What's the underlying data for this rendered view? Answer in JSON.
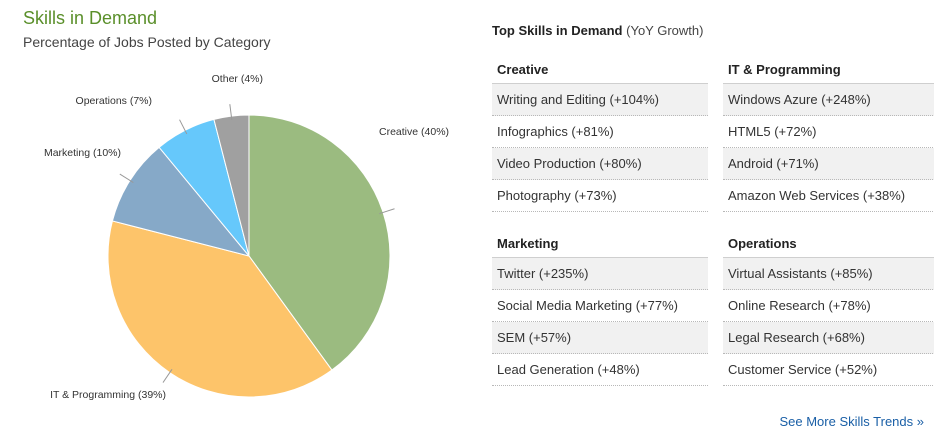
{
  "header": {
    "title": "Skills in Demand",
    "subtitle": "Percentage of Jobs Posted by Category"
  },
  "chart_data": {
    "type": "pie",
    "slices": [
      {
        "label": "Creative (40%)",
        "value": 40,
        "color": "#9bbb80"
      },
      {
        "label": "IT & Programming (39%)",
        "value": 39,
        "color": "#fdc46a"
      },
      {
        "label": "Marketing (10%)",
        "value": 10,
        "color": "#86a9c8"
      },
      {
        "label": "Operations (7%)",
        "value": 7,
        "color": "#66c8fb"
      },
      {
        "label": "Other (4%)",
        "value": 4,
        "color": "#a0a0a0"
      }
    ]
  },
  "skills": {
    "title": "Top Skills in Demand",
    "title_sub": "(YoY Growth)",
    "groups": [
      {
        "name": "Creative",
        "items": [
          "Writing and Editing (+104%)",
          "Infographics (+81%)",
          "Video Production (+80%)",
          "Photography (+73%)"
        ]
      },
      {
        "name": "IT & Programming",
        "items": [
          "Windows Azure (+248%)",
          "HTML5 (+72%)",
          "Android (+71%)",
          "Amazon Web Services (+38%)"
        ]
      },
      {
        "name": "Marketing",
        "items": [
          "Twitter (+235%)",
          "Social Media Marketing (+77%)",
          "SEM (+57%)",
          "Lead Generation (+48%)"
        ]
      },
      {
        "name": "Operations",
        "items": [
          "Virtual Assistants (+85%)",
          "Online Research (+78%)",
          "Legal Research (+68%)",
          "Customer Service (+52%)"
        ]
      }
    ],
    "more_link": "See More Skills Trends »"
  }
}
